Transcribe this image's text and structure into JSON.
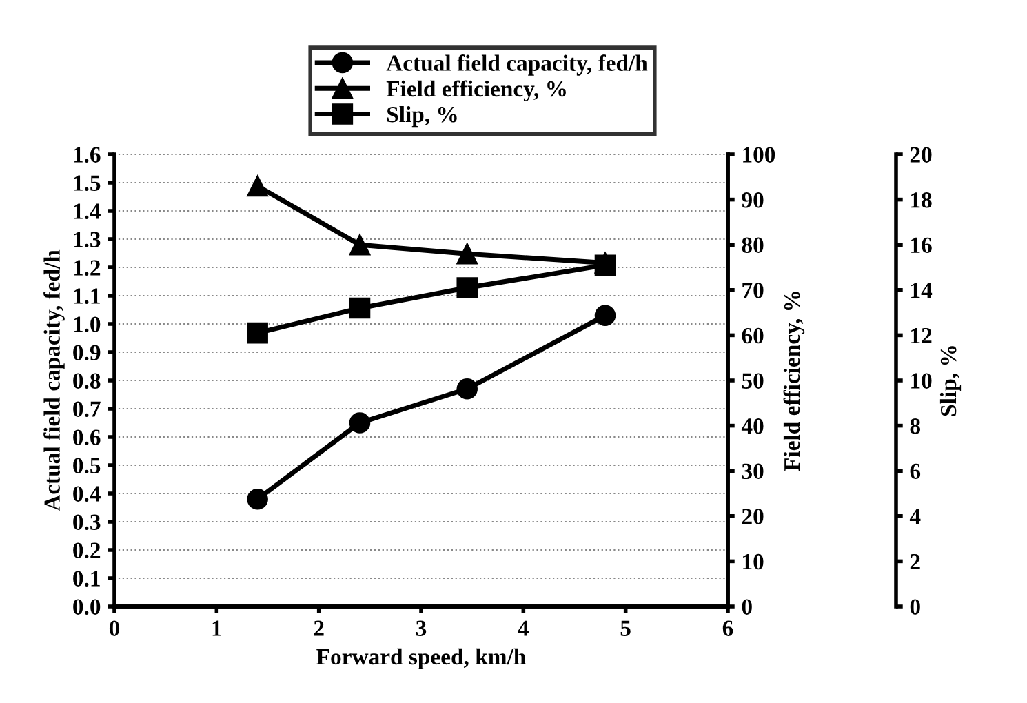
{
  "chart_data": {
    "type": "line",
    "xlabel": "Forward speed, km/h",
    "ylabel": "Actual field capacity, fed/h",
    "y2label": "Field efficiency, %",
    "y3label": "Slip, %",
    "xlim": [
      0,
      6
    ],
    "xticks": [
      0,
      1,
      2,
      3,
      4,
      5,
      6
    ],
    "ylim": [
      0,
      1.6
    ],
    "yticks": [
      {
        "value": 0,
        "label": "0.0"
      },
      0.1,
      0.2,
      0.3,
      0.4,
      0.5,
      0.6,
      0.7,
      0.8,
      0.9,
      {
        "value": 1,
        "label": "1.0"
      },
      1.1,
      1.2,
      1.3,
      1.4,
      1.5,
      1.6
    ],
    "y2lim": [
      0,
      100
    ],
    "y2ticks": [
      0,
      10,
      20,
      30,
      40,
      50,
      60,
      70,
      80,
      90,
      100
    ],
    "y3lim": [
      0,
      20
    ],
    "y3ticks": [
      0,
      2,
      4,
      6,
      8,
      10,
      12,
      14,
      16,
      18,
      20
    ],
    "grid": "y",
    "legend": "top",
    "series": [
      {
        "name": "Actual field capacity, fed/h",
        "color": "#000000",
        "marker": "circle",
        "x": [
          1.4,
          2.4,
          3.45,
          4.8
        ],
        "values": [
          0.38,
          0.65,
          0.77,
          1.03
        ]
      },
      {
        "name": "Field efficiency, %",
        "color": "#000000",
        "marker": "triangle",
        "axis": "y2",
        "x": [
          1.4,
          2.4,
          3.45,
          4.8
        ],
        "values": [
          93,
          80,
          78,
          76
        ]
      },
      {
        "name": "Slip, %",
        "color": "#000000",
        "marker": "square",
        "axis": "y3",
        "x": [
          1.4,
          2.4,
          3.45,
          4.8
        ],
        "values": [
          12.1,
          13.2,
          14.1,
          15.1
        ]
      }
    ]
  }
}
